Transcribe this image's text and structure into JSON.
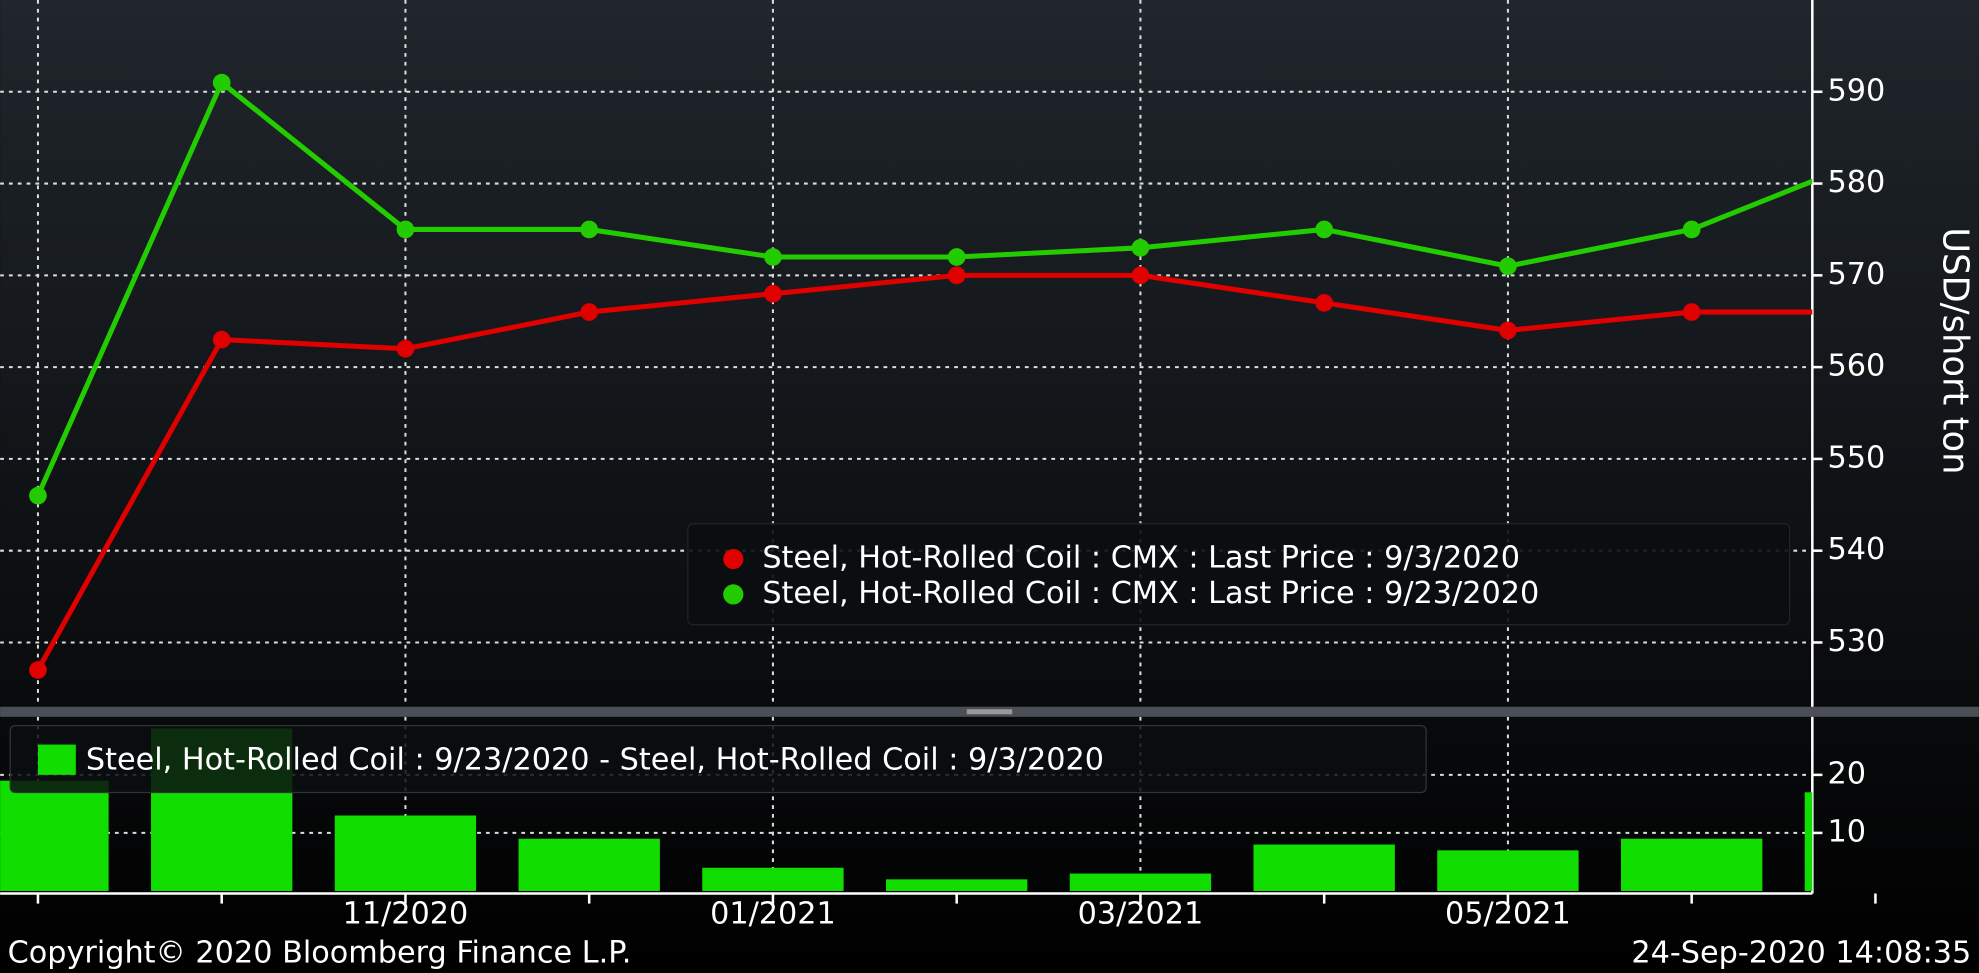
{
  "chart_data": [
    {
      "type": "line",
      "ylabel": "USD/short ton",
      "ylim": [
        523,
        600
      ],
      "yticks": [
        530,
        540,
        550,
        560,
        570,
        580,
        590
      ],
      "grid": true,
      "series": [
        {
          "name": "Steel, Hot-Rolled Coil : CMX : Last Price : 9/3/2020",
          "color": "#e00000",
          "values": [
            527,
            563,
            562,
            566,
            568,
            570,
            570,
            567,
            564,
            566,
            566
          ]
        },
        {
          "name": "Steel, Hot-Rolled Coil : CMX : Last Price : 9/23/2020",
          "color": "#22cc00",
          "values": [
            546,
            591,
            575,
            575,
            572,
            572,
            573,
            575,
            571,
            575,
            583
          ]
        }
      ]
    },
    {
      "type": "bar",
      "categories": [
        null,
        null,
        "11/2020",
        null,
        "01/2021",
        null,
        "03/2021",
        null,
        "05/2021",
        null,
        null
      ],
      "ylim": [
        0,
        30
      ],
      "yticks": [
        10,
        20
      ],
      "grid": true,
      "series": [
        {
          "name": "Steel, Hot-Rolled Coil : 9/23/2020 - Steel, Hot-Rolled Coil : 9/3/2020",
          "color": "#11dd00",
          "values": [
            19,
            28,
            13,
            9,
            4,
            2,
            3,
            8,
            7,
            9,
            17
          ]
        }
      ]
    }
  ],
  "footer": {
    "left": "Copyright© 2020 Bloomberg Finance L.P.",
    "right": "24-Sep-2020 14:08:35"
  }
}
